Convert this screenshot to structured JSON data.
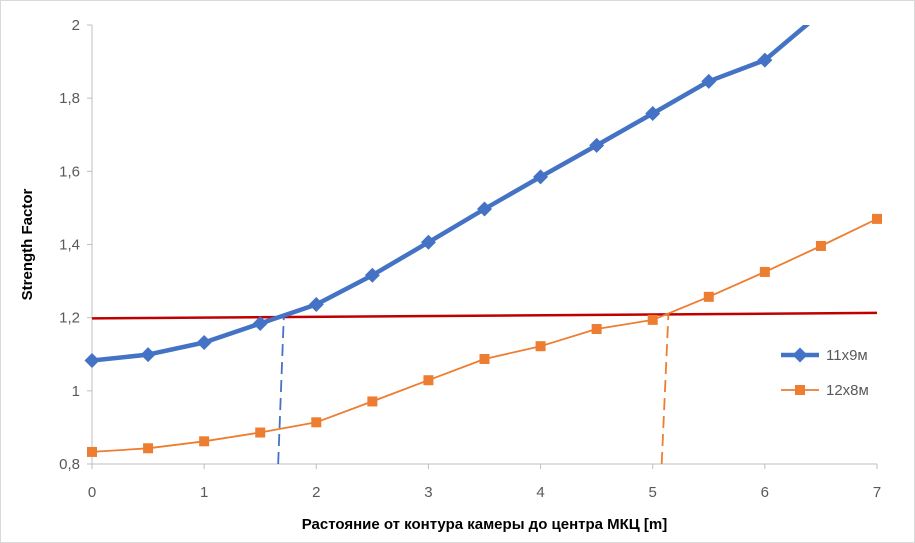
{
  "chart_data": {
    "type": "line",
    "title": "",
    "xlabel": "Растояние от контура камеры до центра МКЦ [m]",
    "ylabel": "Strength Factor",
    "xlim": [
      0,
      7
    ],
    "ylim": [
      0.8,
      2
    ],
    "x_ticks": [
      0,
      1,
      2,
      3,
      4,
      5,
      6,
      7
    ],
    "x_tick_labels": [
      "0",
      "1",
      "2",
      "3",
      "4",
      "5",
      "6",
      "7"
    ],
    "y_ticks": [
      0.8,
      1,
      1.2,
      1.4,
      1.6,
      1.8,
      2
    ],
    "y_tick_labels": [
      "0,8",
      "1",
      "1,2",
      "1,4",
      "1,6",
      "1,8",
      "2"
    ],
    "grid": false,
    "legend_position": "right",
    "series": [
      {
        "name": "11х9м",
        "color": "#4472c4",
        "marker": "diamond",
        "x": [
          0,
          0.5,
          1,
          1.5,
          2,
          2.5,
          3,
          3.5,
          4,
          4.5,
          5,
          5.5,
          6,
          6.5
        ],
        "y": [
          1.083,
          1.099,
          1.132,
          1.184,
          1.236,
          1.316,
          1.406,
          1.497,
          1.585,
          1.671,
          1.758,
          1.846,
          1.904,
          2.033
        ]
      },
      {
        "name": "12х8м",
        "color": "#ed7d31",
        "marker": "square",
        "x": [
          0,
          0.5,
          1,
          1.5,
          2,
          2.5,
          3,
          3.5,
          4,
          4.5,
          5,
          5.5,
          6,
          6.5,
          7
        ],
        "y": [
          0.833,
          0.843,
          0.862,
          0.886,
          0.914,
          0.971,
          1.029,
          1.087,
          1.122,
          1.169,
          1.194,
          1.257,
          1.325,
          1.396,
          1.47
        ]
      }
    ],
    "threshold_line": {
      "color": "#c00000",
      "x": [
        0,
        7
      ],
      "y": [
        1.198,
        1.213
      ]
    },
    "drop_lines": [
      {
        "color": "#4472c4",
        "x": [
          1.66,
          1.71
        ],
        "y": [
          0.8,
          1.2
        ]
      },
      {
        "color": "#ed7d31",
        "x": [
          5.08,
          5.14
        ],
        "y": [
          0.8,
          1.21
        ]
      }
    ]
  }
}
